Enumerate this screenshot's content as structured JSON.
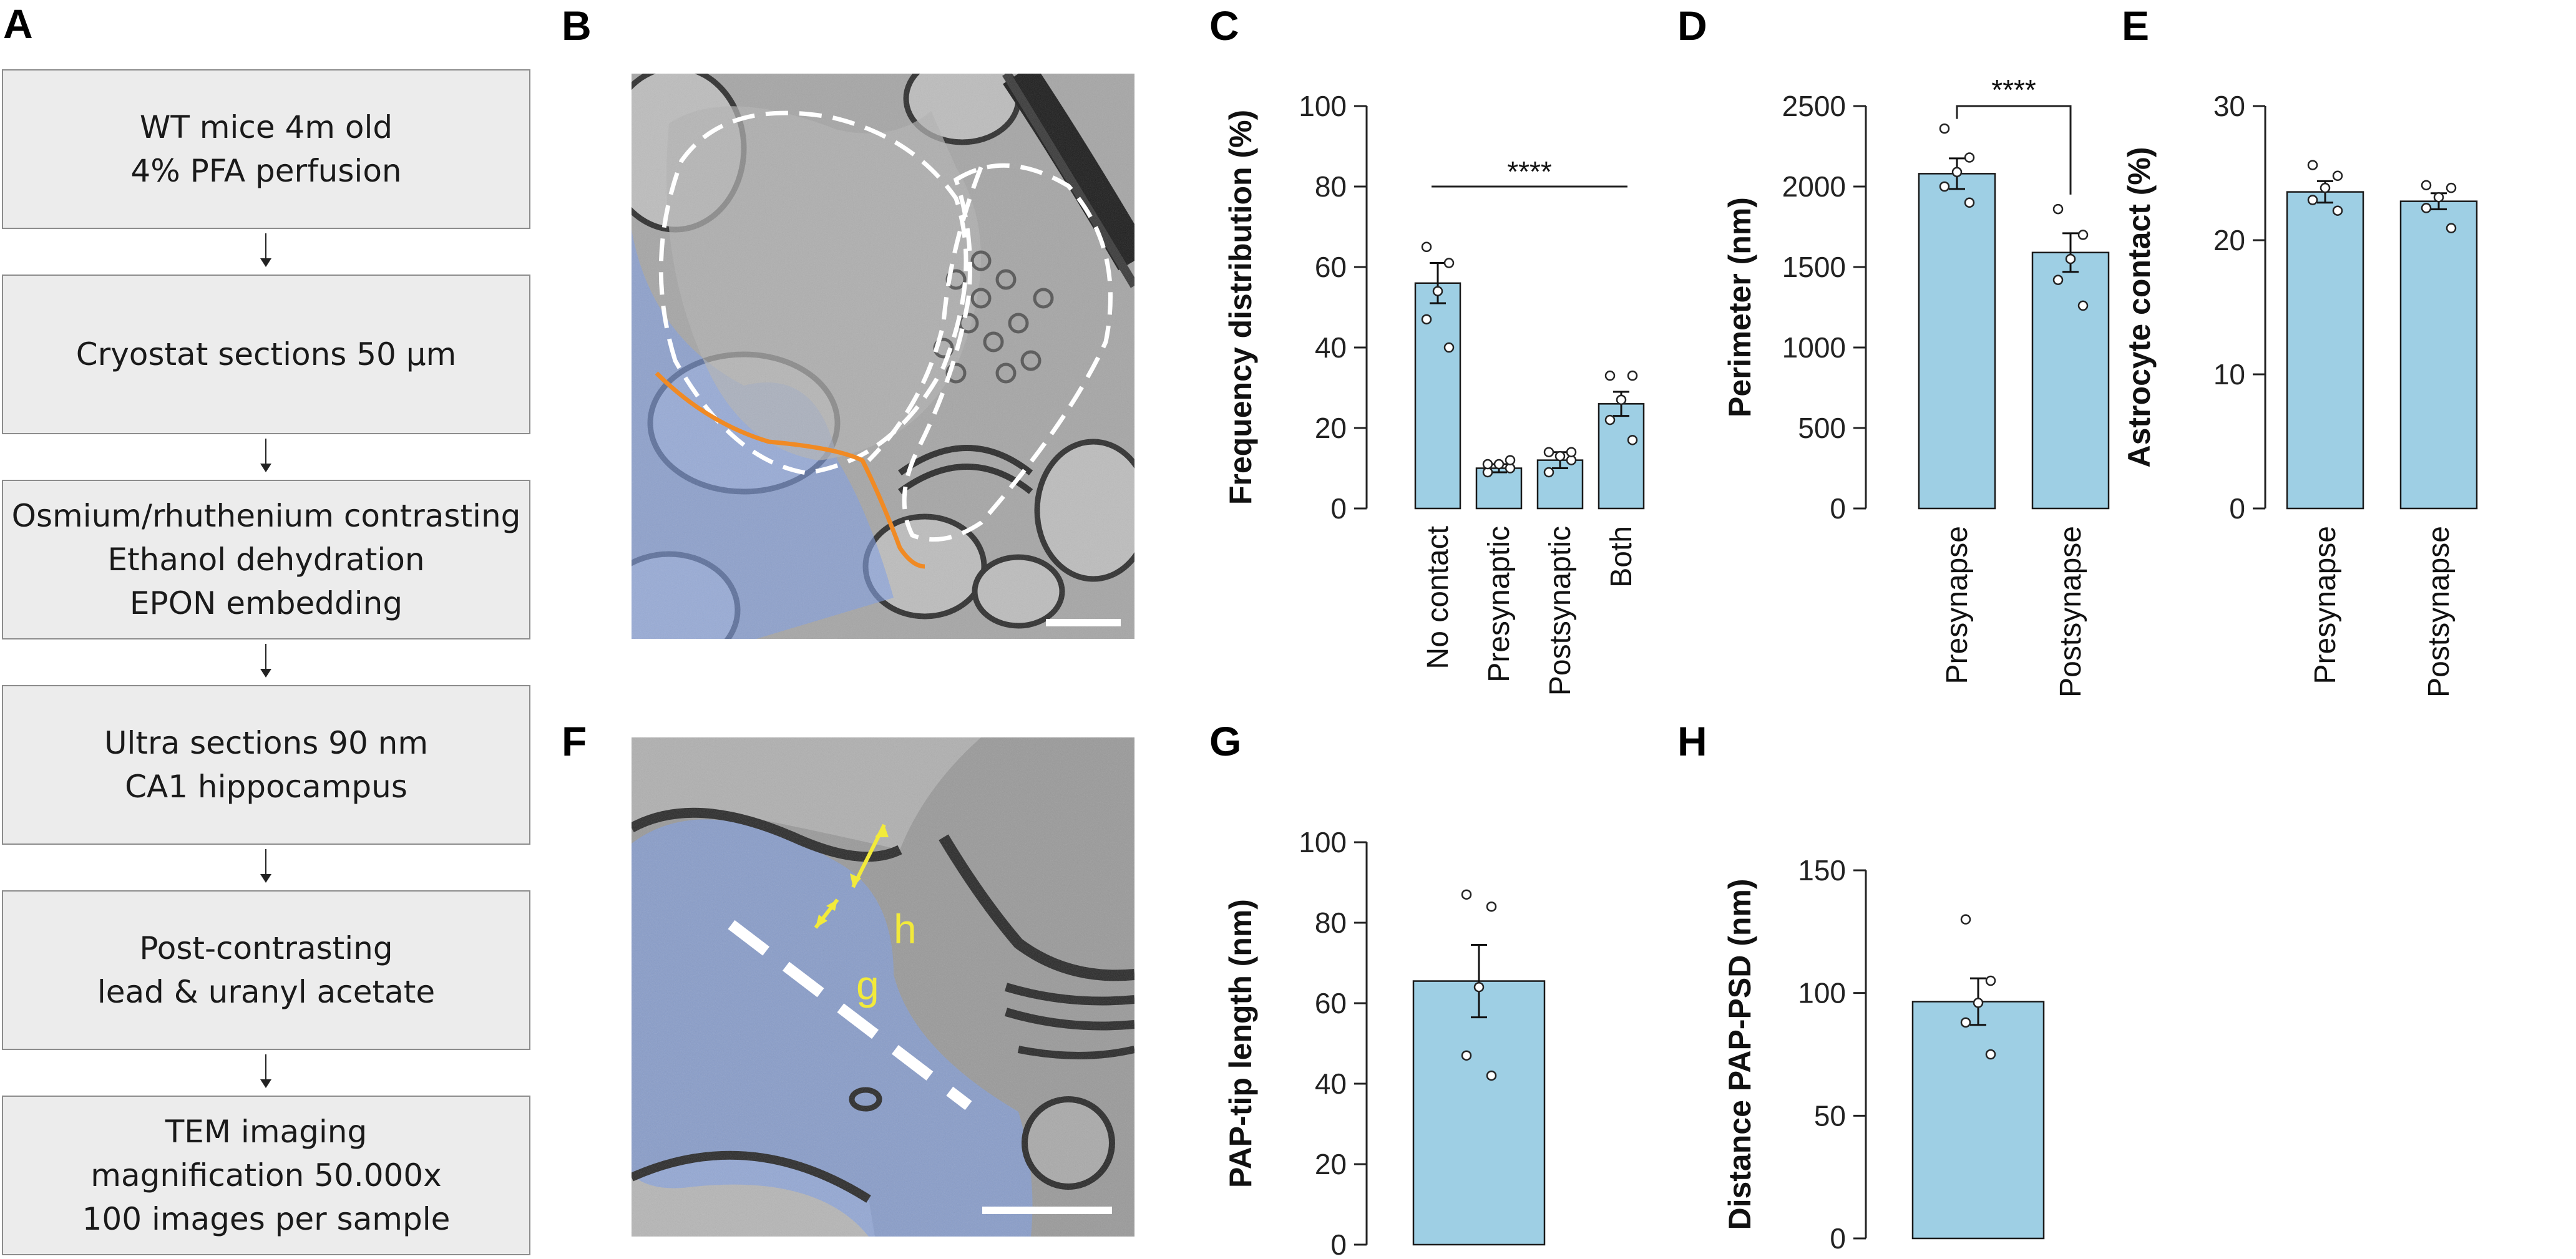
{
  "panels": {
    "A": "A",
    "B": "B",
    "C": "C",
    "D": "D",
    "E": "E",
    "F": "F",
    "G": "G",
    "H": "H"
  },
  "flowchart": [
    [
      "WT mice 4m old",
      "4% PFA perfusion"
    ],
    [
      "Cryostat sections 50 µm"
    ],
    [
      "Osmium/rhuthenium contrasting",
      "Ethanol dehydration",
      "EPON embedding"
    ],
    [
      "Ultra sections 90 nm",
      "CA1 hippocampus"
    ],
    [
      "Post-contrasting",
      "lead & uranyl acetate"
    ],
    [
      "TEM imaging",
      "magnification 50.000x",
      "100 images per sample"
    ]
  ],
  "micrograph_F": {
    "label_h": "h",
    "label_g": "g"
  },
  "colors": {
    "bar_fill": "#9ecfe4",
    "astrocyte_overlay": "#7f9fe6",
    "contact_line": "#f08a24",
    "annotation_yellow": "#f2ea3a",
    "flow_box": "#ececec"
  },
  "chart_data": [
    {
      "panel": "C",
      "type": "bar",
      "ylabel": "Frequency distribution (%)",
      "ylim": [
        0,
        100
      ],
      "yticks": [
        0,
        20,
        40,
        60,
        80,
        100
      ],
      "categories": [
        "No contact",
        "Presynaptic",
        "Postsynaptic",
        "Both"
      ],
      "values": [
        56,
        10,
        12,
        26
      ],
      "sem": [
        5,
        1,
        2,
        3
      ],
      "points": [
        [
          65,
          61,
          54,
          47,
          40
        ],
        [
          9,
          10,
          11,
          11,
          12
        ],
        [
          9,
          12,
          13,
          14,
          14
        ],
        [
          33,
          33,
          27,
          22,
          17
        ]
      ],
      "significance": "****"
    },
    {
      "panel": "D",
      "type": "bar",
      "ylabel": "Perimeter (nm)",
      "ylim": [
        0,
        2500
      ],
      "yticks": [
        0,
        500,
        1000,
        1500,
        2000,
        2500
      ],
      "categories": [
        "Presynapse",
        "Postsynapse"
      ],
      "values": [
        2080,
        1590
      ],
      "sem": [
        95,
        120
      ],
      "points": [
        [
          2360,
          2180,
          2090,
          2000,
          1900
        ],
        [
          1860,
          1700,
          1550,
          1420,
          1260
        ]
      ],
      "significance": "****"
    },
    {
      "panel": "E",
      "type": "bar",
      "ylabel": "Astrocyte contact (%)",
      "ylim": [
        0,
        30
      ],
      "yticks": [
        0,
        10,
        20,
        30
      ],
      "categories": [
        "Presynapse",
        "Postsynapse"
      ],
      "values": [
        23.6,
        22.9
      ],
      "sem": [
        0.8,
        0.6
      ],
      "points": [
        [
          25.6,
          24.8,
          23.9,
          23.0,
          22.2
        ],
        [
          24.1,
          23.9,
          23.2,
          22.4,
          20.9
        ]
      ]
    },
    {
      "panel": "G",
      "type": "bar",
      "ylabel": "PAP-tip length (nm)",
      "ylim": [
        0,
        100
      ],
      "yticks": [
        0,
        20,
        40,
        60,
        80,
        100
      ],
      "categories": [
        ""
      ],
      "values": [
        65.5
      ],
      "sem": [
        9
      ],
      "points": [
        [
          87,
          84,
          64,
          47,
          42
        ]
      ]
    },
    {
      "panel": "H",
      "type": "bar",
      "ylabel": "Distance PAP-PSD (nm)",
      "ylim": [
        0,
        150
      ],
      "yticks": [
        0,
        50,
        100,
        150
      ],
      "categories": [
        ""
      ],
      "values": [
        96.5
      ],
      "sem": [
        9.5
      ],
      "points": [
        [
          130,
          105,
          96,
          88,
          75
        ]
      ]
    }
  ]
}
